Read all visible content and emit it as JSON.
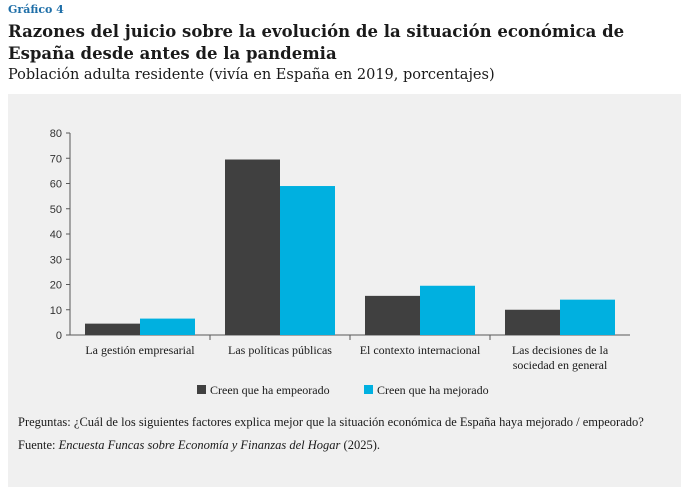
{
  "header": {
    "tag": "Gráfico 4",
    "title": "Razones del juicio sobre la evolución de la situación económica de España desde antes de la pandemia",
    "subtitle": "Población adulta residente (vivía en España en 2019, porcentajes)"
  },
  "footer": {
    "question": "Preguntas: ¿Cuál de los siguientes factores explica mejor que la situación económica de España haya mejorado / empeorado?",
    "source_prefix": "Fuente: ",
    "source_title": "Encuesta Funcas sobre Economía y Finanzas del Hogar",
    "source_suffix": " (2025)."
  },
  "chart_data": {
    "type": "bar",
    "categories": [
      [
        "La gestión empresarial"
      ],
      [
        "Las políticas públicas"
      ],
      [
        "El contexto internacional"
      ],
      [
        "Las decisiones de la",
        "sociedad en general"
      ]
    ],
    "series": [
      {
        "name": "Creen que ha empeorado",
        "color": "#404040",
        "values": [
          4.5,
          69.5,
          15.5,
          10
        ]
      },
      {
        "name": "Creen que ha mejorado",
        "color": "#00b0e0",
        "values": [
          6.5,
          59,
          19.5,
          14
        ]
      }
    ],
    "ylim": [
      0,
      80
    ],
    "yticks": [
      0,
      10,
      20,
      30,
      40,
      50,
      60,
      70,
      80
    ],
    "grid": false,
    "legend_position": "bottom-center"
  }
}
